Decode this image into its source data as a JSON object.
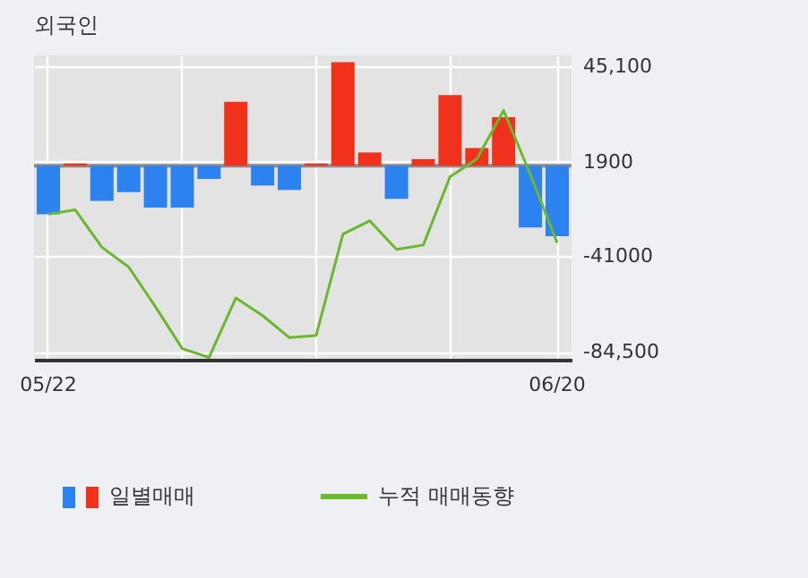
{
  "chart_data": {
    "type": "bar",
    "title": "외국인",
    "categories": [
      "05/22",
      null,
      null,
      null,
      null,
      null,
      null,
      null,
      null,
      null,
      null,
      null,
      null,
      null,
      null,
      null,
      null,
      null,
      null,
      "06/20"
    ],
    "series": [
      {
        "name": "일별매매",
        "colors": [
          "#2c82ef",
          "#f0311b",
          "#2c82ef",
          "#2c82ef",
          "#2c82ef",
          "#2c82ef",
          "#2c82ef",
          "#f0311b",
          "#2c82ef",
          "#2c82ef",
          "#f0311b",
          "#f0311b",
          "#f0311b",
          "#2c82ef",
          "#f0311b",
          "#f0311b",
          "#f0311b",
          "#f0311b",
          "#2c82ef",
          "#2c82ef"
        ],
        "values": [
          -22000,
          1000,
          -16000,
          -12000,
          -19000,
          -19000,
          -6000,
          29000,
          -9000,
          -11000,
          1000,
          47000,
          6000,
          -15000,
          3000,
          32000,
          8000,
          22000,
          -28000,
          -32000
        ]
      },
      {
        "name": "누적 매매동향",
        "type": "line",
        "color": "#6ab82d",
        "values": [
          -22000,
          -20000,
          -37000,
          -46000,
          -64000,
          -83000,
          -87000,
          -60000,
          -68000,
          -78000,
          -77000,
          -31000,
          -25000,
          -38000,
          -36000,
          -5000,
          3000,
          25000,
          -4000,
          -35000
        ]
      }
    ],
    "ylim": [
      -88000,
      50000
    ],
    "yticks": [
      {
        "value": 45100,
        "label": "45,100"
      },
      1900,
      -41000,
      {
        "value": -84500,
        "label": "-84,500"
      }
    ],
    "ref_lines": [
      {
        "axis": "y",
        "value": 0,
        "color": "#8c8c8c"
      }
    ],
    "grid": true,
    "legend": "bottom"
  }
}
